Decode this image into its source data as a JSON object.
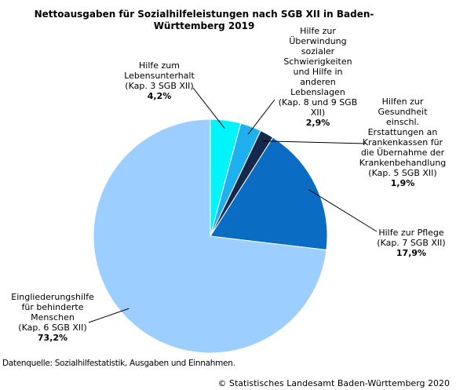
{
  "chart_data": {
    "type": "pie",
    "title": "Nettoausgaben für Sozialhilfeleistungen nach SGB XII in Baden-Württemberg 2019",
    "slices": [
      {
        "label_lines": [
          "Hilfe zum",
          "Lebensunterhalt",
          "(Kap. 3 SGB XII)"
        ],
        "value_label": "4,2%",
        "value": 4.2,
        "color": "#00f5fa"
      },
      {
        "label_lines": [
          "Hilfe zur",
          "Überwindung",
          "sozialer",
          "Schwierigkeiten",
          "und Hilfe in",
          "anderen",
          "Lebenslagen",
          "(Kap. 8 und 9 SGB",
          "XII)"
        ],
        "value_label": "2,9%",
        "value": 2.9,
        "color": "#1fb0ee"
      },
      {
        "label_lines": [
          "Hilfen zur",
          "Gesundheit",
          "einschl.",
          "Erstattungen an",
          "Krankenkassen für",
          "die Übernahme der",
          "Krankenbehandlung",
          "(Kap. 5 SGB XII)"
        ],
        "value_label": "1,9%",
        "value": 1.9,
        "color": "#16294a"
      },
      {
        "label_lines": [
          "Hilfe zur Pflege",
          "(Kap. 7 SGB XII)"
        ],
        "value_label": "17,9%",
        "value": 17.9,
        "color": "#0a6cc2"
      },
      {
        "label_lines": [
          "Eingliederungshilfe",
          "für behinderte",
          "Menschen",
          "(Kap. 6 SGB XII)"
        ],
        "value_label": "73,2%",
        "value": 73.2,
        "color": "#9ccfff"
      }
    ]
  },
  "source": "Datenquelle: Sozialhilfestatistik, Ausgaben und Einnahmen.",
  "copyright": "© Statistisches Landesamt Baden-Württemberg 2020"
}
